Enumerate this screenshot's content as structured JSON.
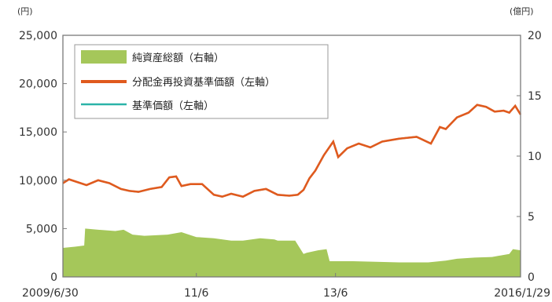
{
  "chart_data": {
    "type": "area+line",
    "left_axis": {
      "unit": "(円)",
      "ylim": [
        0,
        25000
      ],
      "ticks": [
        0,
        5000,
        10000,
        15000,
        20000,
        25000
      ],
      "tick_labels": [
        "0",
        "5,000",
        "10,000",
        "15,000",
        "20,000",
        "25,000"
      ]
    },
    "right_axis": {
      "unit": "(億円)",
      "ylim": [
        0,
        20
      ],
      "ticks": [
        0,
        5,
        10,
        15,
        20
      ],
      "tick_labels": [
        "0",
        "5",
        "10",
        "15",
        "20"
      ]
    },
    "x_axis": {
      "start": "2009-06-30",
      "end": "2016-01-29",
      "tick_dates": [
        "2009-06-30",
        "2011-06-01",
        "2013-06-01",
        "2016-01-29"
      ],
      "tick_labels": [
        "2009/6/30",
        "11/6",
        "13/6",
        "2016/1/29"
      ]
    },
    "legend": {
      "position": "top-left",
      "entries": [
        "純資産総額（右軸）",
        "分配金再投資基準価額（左軸）",
        "基準価額（左軸）"
      ]
    },
    "series": [
      {
        "name": "純資産総額（右軸）",
        "type": "area",
        "axis": "right",
        "color": "#a5c75a",
        "x": [
          "2009-06-30",
          "2009-09-01",
          "2009-10-20",
          "2009-10-25",
          "2010-01-01",
          "2010-04-01",
          "2010-05-15",
          "2010-07-01",
          "2010-09-01",
          "2011-01-01",
          "2011-03-15",
          "2011-06-01",
          "2011-09-01",
          "2011-12-01",
          "2012-02-01",
          "2012-05-01",
          "2012-07-15",
          "2012-08-01",
          "2012-11-01",
          "2012-12-15",
          "2013-01-01",
          "2013-03-01",
          "2013-04-15",
          "2013-05-01",
          "2013-09-01",
          "2014-01-01",
          "2014-05-01",
          "2014-10-01",
          "2015-01-01",
          "2015-03-01",
          "2015-06-01",
          "2015-09-01",
          "2015-12-01",
          "2015-12-20",
          "2016-01-29"
        ],
        "y": [
          2.4,
          2.5,
          2.6,
          4.0,
          3.9,
          3.8,
          3.9,
          3.5,
          3.4,
          3.5,
          3.7,
          3.3,
          3.2,
          3.0,
          3.0,
          3.2,
          3.1,
          3.0,
          3.0,
          1.9,
          2.0,
          2.2,
          2.3,
          1.3,
          1.3,
          1.25,
          1.2,
          1.2,
          1.35,
          1.5,
          1.6,
          1.65,
          1.9,
          2.3,
          2.2
        ]
      },
      {
        "name": "分配金再投資基準価額（左軸）",
        "type": "line",
        "axis": "left",
        "color": "#e05a1e",
        "x": [
          "2009-06-30",
          "2009-08-01",
          "2009-11-01",
          "2010-01-01",
          "2010-03-01",
          "2010-05-01",
          "2010-06-15",
          "2010-08-01",
          "2010-10-01",
          "2010-12-01",
          "2011-01-10",
          "2011-02-15",
          "2011-03-15",
          "2011-05-01",
          "2011-07-01",
          "2011-09-01",
          "2011-10-15",
          "2011-12-01",
          "2012-02-01",
          "2012-04-01",
          "2012-06-01",
          "2012-08-01",
          "2012-10-01",
          "2012-11-15",
          "2012-12-15",
          "2013-01-15",
          "2013-02-15",
          "2013-04-01",
          "2013-05-20",
          "2013-06-15",
          "2013-08-01",
          "2013-10-01",
          "2013-12-01",
          "2014-02-01",
          "2014-05-01",
          "2014-08-01",
          "2014-10-15",
          "2014-12-01",
          "2015-01-01",
          "2015-03-01",
          "2015-05-01",
          "2015-06-15",
          "2015-08-01",
          "2015-09-15",
          "2015-11-01",
          "2015-12-01",
          "2016-01-01",
          "2016-01-29"
        ],
        "y": [
          9700,
          10100,
          9500,
          10000,
          9700,
          9100,
          8900,
          8800,
          9100,
          9300,
          10300,
          10400,
          9400,
          9600,
          9600,
          8500,
          8300,
          8600,
          8300,
          8900,
          9100,
          8500,
          8400,
          8500,
          9000,
          10200,
          11000,
          12600,
          14000,
          12400,
          13300,
          13800,
          13400,
          14000,
          14300,
          14500,
          13800,
          15500,
          15300,
          16500,
          17000,
          17800,
          17600,
          17100,
          17200,
          17000,
          17700,
          16800
        ]
      },
      {
        "name": "基準価額（左軸）",
        "type": "line",
        "axis": "left",
        "color": "#2bb3a8",
        "same_values_as": "分配金再投資基準価額（左軸）"
      }
    ]
  }
}
